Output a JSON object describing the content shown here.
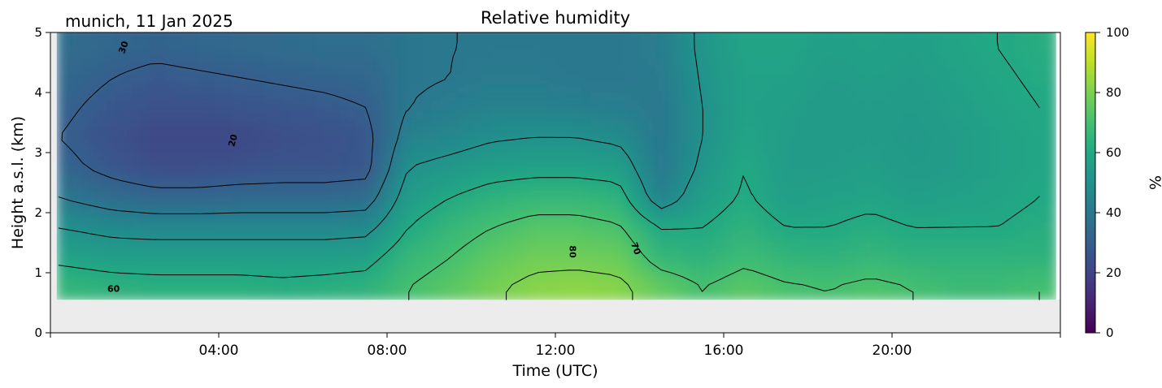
{
  "chart_data": {
    "type": "heatmap",
    "title": "Relative humidity",
    "subtitle": "munich, 11 Jan 2025",
    "xlabel": "Time (UTC)",
    "ylabel": "Height a.s.l. (km)",
    "xlim_hours": [
      0,
      24
    ],
    "ylim_km": [
      0,
      5
    ],
    "x_ticks": [
      {
        "hour": 4,
        "label": "04:00"
      },
      {
        "hour": 8,
        "label": "08:00"
      },
      {
        "hour": 12,
        "label": "12:00"
      },
      {
        "hour": 16,
        "label": "16:00"
      },
      {
        "hour": 20,
        "label": "20:00"
      }
    ],
    "y_ticks": [
      {
        "value": 0,
        "label": "0"
      },
      {
        "value": 1,
        "label": "1"
      },
      {
        "value": 2,
        "label": "2"
      },
      {
        "value": 3,
        "label": "3"
      },
      {
        "value": 4,
        "label": "4"
      },
      {
        "value": 5,
        "label": "5"
      }
    ],
    "colorbar": {
      "label": "%",
      "range": [
        0,
        100
      ],
      "ticks": [
        {
          "value": 0,
          "label": "0"
        },
        {
          "value": 20,
          "label": "20"
        },
        {
          "value": 40,
          "label": "40"
        },
        {
          "value": 60,
          "label": "60"
        },
        {
          "value": 80,
          "label": "80"
        },
        {
          "value": 100,
          "label": "100"
        }
      ],
      "colormap": "viridis"
    },
    "data_bottom_km": 0.55,
    "missing_color": "#ececec",
    "time_hours": [
      0.2,
      1.5,
      2.5,
      3.5,
      4.5,
      5.5,
      6.5,
      7.5,
      8.5,
      9.5,
      10.5,
      11.5,
      12.5,
      13.5,
      14.5,
      15.5,
      16.5,
      17.5,
      18.5,
      19.5,
      20.5,
      21.5,
      22.5,
      23.5
    ],
    "height_km": [
      0.75,
      1.25,
      1.75,
      2.25,
      2.75,
      3.25,
      3.75,
      4.25,
      4.75
    ],
    "rh_percent": [
      [
        66,
        64,
        63,
        63,
        63,
        62,
        63,
        64,
        70,
        74,
        79,
        82,
        83,
        82,
        76,
        70,
        74,
        71,
        70,
        72,
        70,
        68,
        68,
        70
      ],
      [
        58,
        56,
        56,
        56,
        56,
        56,
        56,
        57,
        66,
        70,
        75,
        78,
        78,
        77,
        66,
        64,
        68,
        65,
        64,
        66,
        64,
        64,
        64,
        64
      ],
      [
        50,
        47,
        46,
        46,
        46,
        46,
        46,
        47,
        60,
        66,
        70,
        73,
        73,
        71,
        60,
        60,
        64,
        60,
        60,
        62,
        60,
        60,
        60,
        62
      ],
      [
        40,
        35,
        33,
        33,
        34,
        34,
        34,
        35,
        55,
        60,
        64,
        66,
        66,
        64,
        44,
        56,
        61,
        56,
        57,
        58,
        56,
        57,
        58,
        60
      ],
      [
        33,
        27,
        24,
        24,
        25,
        26,
        26,
        27,
        50,
        53,
        56,
        57,
        57,
        56,
        40,
        52,
        60,
        55,
        55,
        56,
        54,
        55,
        57,
        59
      ],
      [
        30,
        25,
        22,
        22,
        22,
        24,
        25,
        27,
        44,
        46,
        49,
        50,
        50,
        48,
        40,
        50,
        58,
        55,
        54,
        55,
        53,
        55,
        57,
        59
      ],
      [
        32,
        27,
        25,
        25,
        26,
        27,
        28,
        30,
        40,
        42,
        44,
        44,
        43,
        42,
        40,
        50,
        57,
        56,
        54,
        55,
        54,
        56,
        58,
        60
      ],
      [
        34,
        30,
        28,
        29,
        30,
        31,
        32,
        33,
        39,
        40,
        41,
        41,
        40,
        40,
        41,
        51,
        57,
        57,
        55,
        56,
        55,
        57,
        59,
        61
      ],
      [
        36,
        33,
        32,
        33,
        34,
        35,
        36,
        36,
        39,
        40,
        40,
        40,
        40,
        40,
        42,
        52,
        58,
        58,
        56,
        57,
        56,
        58,
        60,
        62
      ]
    ],
    "contour_levels": [
      20,
      30,
      40,
      50,
      60,
      70,
      80
    ],
    "contour_labels": [
      {
        "text": "30",
        "hour": 1.75,
        "km": 4.75,
        "angle": -70
      },
      {
        "text": "20",
        "hour": 4.35,
        "km": 3.2,
        "angle": -75
      },
      {
        "text": "60",
        "hour": 1.5,
        "km": 0.72,
        "angle": 0
      },
      {
        "text": "80",
        "hour": 12.4,
        "km": 1.35,
        "angle": 90
      },
      {
        "text": "70",
        "hour": 13.9,
        "km": 1.4,
        "angle": 70
      }
    ]
  }
}
